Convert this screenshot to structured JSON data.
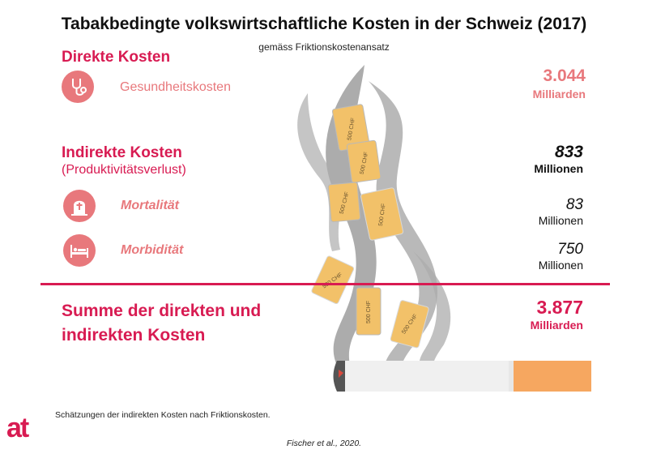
{
  "header": {
    "title": "Tabakbedingte volkswirtschaftliche Kosten in der Schweiz (2017)",
    "subtitle": "gemäss Friktionskostenansatz"
  },
  "direct": {
    "heading": "Direkte Kosten",
    "items": [
      {
        "label": "Gesundheitskosten",
        "value": "3.044",
        "unit": "Milliarden",
        "icon": "stethoscope-icon"
      }
    ]
  },
  "indirect": {
    "heading": "Indirekte Kosten",
    "subheading": "(Produktivitätsverlust)",
    "total_value": "833",
    "total_unit": "Millionen",
    "items": [
      {
        "label": "Mortalität",
        "value": "83",
        "unit": "Millionen",
        "icon": "gravestone-icon"
      },
      {
        "label": "Morbidität",
        "value": "750",
        "unit": "Millionen",
        "icon": "hospital-bed-icon"
      }
    ]
  },
  "sum": {
    "line1": "Summe der direkten und",
    "line2": "indirekten Kosten",
    "value": "3.877",
    "unit": "Milliarden"
  },
  "illustration": {
    "banknote_text": "500 CHF"
  },
  "footnote": "Schätzungen der indirekten Kosten nach Friktionskosten.",
  "source": "Fischer et al., 2020.",
  "logo": "at",
  "colors": {
    "accent": "#d81b52",
    "light_accent": "#e8787c",
    "smoke": "#a8a8a8",
    "banknote": "#f2c169",
    "filter": "#f6a760"
  }
}
